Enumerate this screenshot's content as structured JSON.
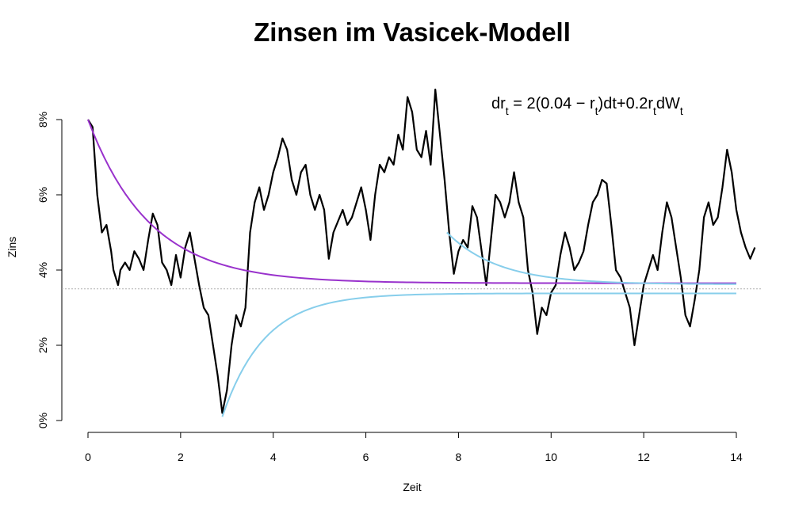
{
  "chart_data": {
    "type": "line",
    "title": "Zinsen im Vasicek-Modell",
    "xlabel": "Zeit",
    "ylabel": "Zins",
    "xlim": [
      0,
      14
    ],
    "ylim": [
      0,
      0.08
    ],
    "xticks": [
      0,
      2,
      4,
      6,
      8,
      10,
      12,
      14
    ],
    "xtick_labels": [
      "0",
      "2",
      "4",
      "6",
      "8",
      "10",
      "12",
      "14"
    ],
    "yticks": [
      0,
      0.02,
      0.04,
      0.06,
      0.08
    ],
    "ytick_labels": [
      "0%",
      "2%",
      "4%",
      "6%",
      "8%"
    ],
    "formula": {
      "lhs": "dr",
      "lhs_sub": "t",
      "rhs_1": " = 2(0.04 − r",
      "rhs_1_sub": "t",
      "rhs_2": ")dt+0.2r",
      "rhs_2_sub": "t",
      "rhs_3": "dW",
      "rhs_3_sub": "t"
    },
    "reference_line": {
      "y": 0.035,
      "color": "#b0b0b0",
      "style": "dotted"
    },
    "series": [
      {
        "kind": "path",
        "color": "#000000",
        "points": [
          [
            0.0,
            0.08
          ],
          [
            0.1,
            0.078
          ],
          [
            0.2,
            0.06
          ],
          [
            0.3,
            0.05
          ],
          [
            0.4,
            0.052
          ],
          [
            0.5,
            0.045
          ],
          [
            0.55,
            0.04
          ],
          [
            0.6,
            0.038
          ],
          [
            0.65,
            0.036
          ],
          [
            0.7,
            0.04
          ],
          [
            0.8,
            0.042
          ],
          [
            0.9,
            0.04
          ],
          [
            1.0,
            0.045
          ],
          [
            1.1,
            0.043
          ],
          [
            1.2,
            0.04
          ],
          [
            1.3,
            0.048
          ],
          [
            1.4,
            0.055
          ],
          [
            1.5,
            0.052
          ],
          [
            1.6,
            0.042
          ],
          [
            1.7,
            0.04
          ],
          [
            1.8,
            0.036
          ],
          [
            1.9,
            0.044
          ],
          [
            2.0,
            0.038
          ],
          [
            2.1,
            0.046
          ],
          [
            2.2,
            0.05
          ],
          [
            2.3,
            0.043
          ],
          [
            2.4,
            0.036
          ],
          [
            2.5,
            0.03
          ],
          [
            2.6,
            0.028
          ],
          [
            2.7,
            0.02
          ],
          [
            2.8,
            0.012
          ],
          [
            2.9,
            0.002
          ],
          [
            3.0,
            0.008
          ],
          [
            3.1,
            0.02
          ],
          [
            3.2,
            0.028
          ],
          [
            3.3,
            0.025
          ],
          [
            3.4,
            0.03
          ],
          [
            3.5,
            0.05
          ],
          [
            3.6,
            0.058
          ],
          [
            3.7,
            0.062
          ],
          [
            3.8,
            0.056
          ],
          [
            3.9,
            0.06
          ],
          [
            4.0,
            0.066
          ],
          [
            4.1,
            0.07
          ],
          [
            4.2,
            0.075
          ],
          [
            4.3,
            0.072
          ],
          [
            4.4,
            0.064
          ],
          [
            4.5,
            0.06
          ],
          [
            4.6,
            0.066
          ],
          [
            4.7,
            0.068
          ],
          [
            4.8,
            0.06
          ],
          [
            4.9,
            0.056
          ],
          [
            5.0,
            0.06
          ],
          [
            5.1,
            0.056
          ],
          [
            5.2,
            0.043
          ],
          [
            5.3,
            0.05
          ],
          [
            5.4,
            0.053
          ],
          [
            5.5,
            0.056
          ],
          [
            5.6,
            0.052
          ],
          [
            5.7,
            0.054
          ],
          [
            5.8,
            0.058
          ],
          [
            5.9,
            0.062
          ],
          [
            6.0,
            0.056
          ],
          [
            6.1,
            0.048
          ],
          [
            6.2,
            0.06
          ],
          [
            6.3,
            0.068
          ],
          [
            6.4,
            0.066
          ],
          [
            6.5,
            0.07
          ],
          [
            6.6,
            0.068
          ],
          [
            6.7,
            0.076
          ],
          [
            6.8,
            0.072
          ],
          [
            6.9,
            0.086
          ],
          [
            7.0,
            0.082
          ],
          [
            7.1,
            0.072
          ],
          [
            7.2,
            0.07
          ],
          [
            7.3,
            0.077
          ],
          [
            7.4,
            0.068
          ],
          [
            7.5,
            0.088
          ],
          [
            7.6,
            0.076
          ],
          [
            7.7,
            0.064
          ],
          [
            7.8,
            0.05
          ],
          [
            7.9,
            0.039
          ],
          [
            8.0,
            0.045
          ],
          [
            8.1,
            0.048
          ],
          [
            8.2,
            0.046
          ],
          [
            8.3,
            0.057
          ],
          [
            8.4,
            0.054
          ],
          [
            8.5,
            0.045
          ],
          [
            8.6,
            0.036
          ],
          [
            8.7,
            0.048
          ],
          [
            8.8,
            0.06
          ],
          [
            8.9,
            0.058
          ],
          [
            9.0,
            0.054
          ],
          [
            9.1,
            0.058
          ],
          [
            9.2,
            0.066
          ],
          [
            9.3,
            0.058
          ],
          [
            9.4,
            0.054
          ],
          [
            9.5,
            0.04
          ],
          [
            9.6,
            0.034
          ],
          [
            9.7,
            0.023
          ],
          [
            9.8,
            0.03
          ],
          [
            9.9,
            0.028
          ],
          [
            10.0,
            0.034
          ],
          [
            10.1,
            0.036
          ],
          [
            10.2,
            0.044
          ],
          [
            10.3,
            0.05
          ],
          [
            10.4,
            0.046
          ],
          [
            10.5,
            0.04
          ],
          [
            10.6,
            0.042
          ],
          [
            10.7,
            0.045
          ],
          [
            10.8,
            0.052
          ],
          [
            10.9,
            0.058
          ],
          [
            11.0,
            0.06
          ],
          [
            11.1,
            0.064
          ],
          [
            11.2,
            0.063
          ],
          [
            11.3,
            0.052
          ],
          [
            11.4,
            0.04
          ],
          [
            11.5,
            0.038
          ],
          [
            11.6,
            0.034
          ],
          [
            11.7,
            0.03
          ],
          [
            11.8,
            0.02
          ],
          [
            11.9,
            0.028
          ],
          [
            12.0,
            0.036
          ],
          [
            12.1,
            0.04
          ],
          [
            12.2,
            0.044
          ],
          [
            12.3,
            0.04
          ],
          [
            12.4,
            0.05
          ],
          [
            12.5,
            0.058
          ],
          [
            12.6,
            0.054
          ],
          [
            12.7,
            0.046
          ],
          [
            12.8,
            0.038
          ],
          [
            12.9,
            0.028
          ],
          [
            13.0,
            0.025
          ],
          [
            13.1,
            0.032
          ],
          [
            13.2,
            0.04
          ],
          [
            13.3,
            0.054
          ],
          [
            13.4,
            0.058
          ],
          [
            13.5,
            0.052
          ],
          [
            13.6,
            0.054
          ],
          [
            13.7,
            0.062
          ],
          [
            13.8,
            0.072
          ],
          [
            13.9,
            0.066
          ],
          [
            14.0,
            0.056
          ],
          [
            14.1,
            0.05
          ],
          [
            14.2,
            0.046
          ],
          [
            14.3,
            0.043
          ],
          [
            14.4,
            0.046
          ]
        ]
      },
      {
        "kind": "expected_from_8pct",
        "color": "#9932CC",
        "start_t": 0.0,
        "end_t": 14.0,
        "y0": 0.08,
        "asymptote": 0.0365,
        "rate": 0.75
      },
      {
        "kind": "expected_from_bottom",
        "color": "#87CEEB",
        "start_t": 2.9,
        "end_t": 14.0,
        "y0": 0.001,
        "asymptote": 0.0338,
        "rate": 1.1
      },
      {
        "kind": "expected_from_mid",
        "color": "#87CEEB",
        "start_t": 7.75,
        "end_t": 14.0,
        "y0": 0.05,
        "asymptote": 0.0362,
        "rate": 0.9
      }
    ]
  }
}
